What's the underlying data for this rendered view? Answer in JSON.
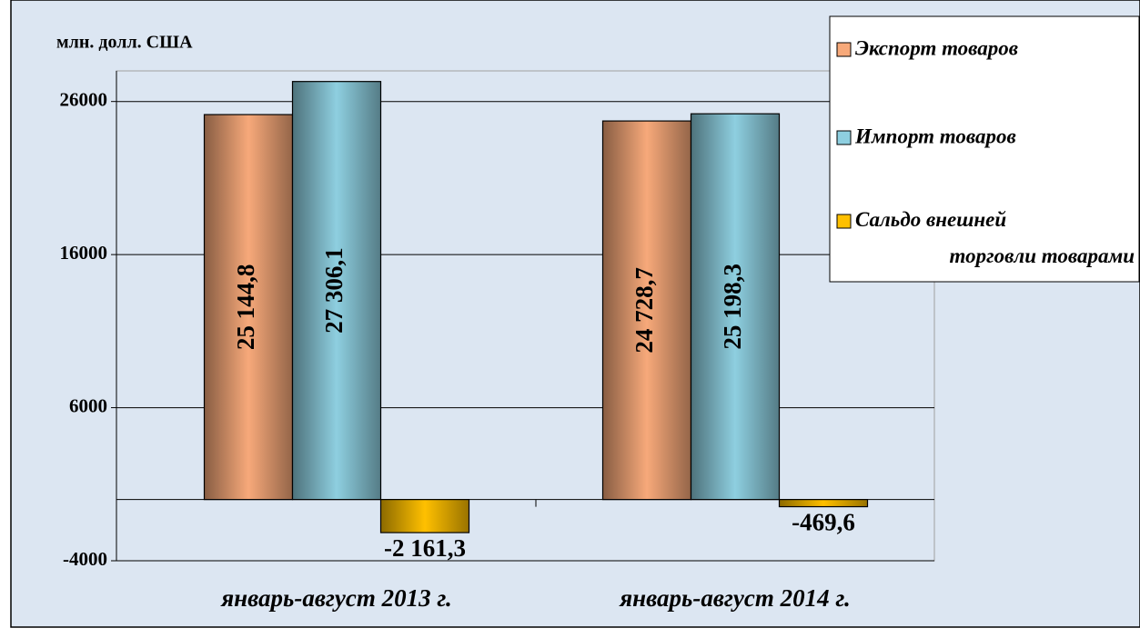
{
  "chart_data": {
    "type": "bar",
    "y_label": "млн. долл. США",
    "categories": [
      "январь-август 2013 г.",
      "январь-август 2014 г."
    ],
    "series": [
      {
        "name": "Экспорт товаров",
        "color": "#f7a97a",
        "values": [
          25144.8,
          24728.7
        ],
        "value_labels": [
          "25 144,8",
          "24 728,7"
        ]
      },
      {
        "name": "Импорт товаров",
        "color": "#8ecfe0",
        "values": [
          27306.1,
          25198.3
        ],
        "value_labels": [
          "27 306,1",
          "25 198,3"
        ]
      },
      {
        "name": "Сальдо внешней торговли товарами",
        "color": "#ffc000",
        "values": [
          -2161.3,
          -469.6
        ],
        "value_labels": [
          "-2 161,3",
          "-469,6"
        ]
      }
    ],
    "ylim": [
      -4000,
      28000
    ],
    "yticks": [
      -4000,
      6000,
      16000,
      26000
    ],
    "grid": true
  }
}
